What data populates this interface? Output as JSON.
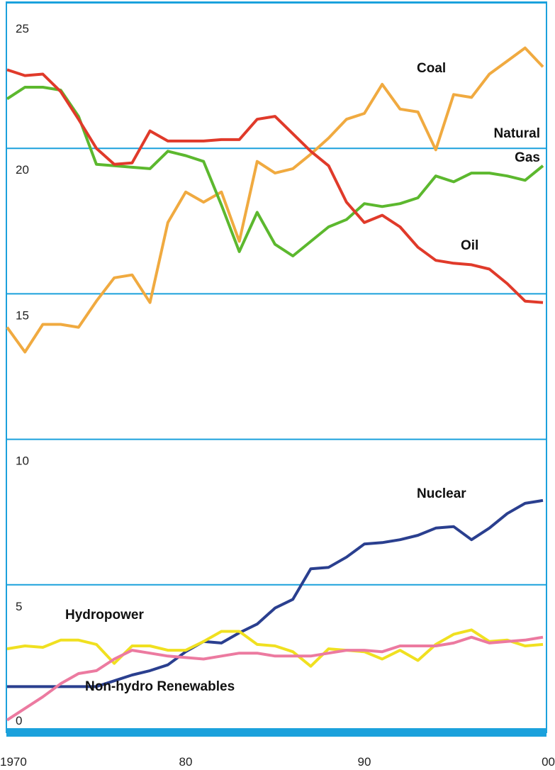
{
  "chart_data": {
    "type": "line",
    "x": [
      1970,
      1971,
      1972,
      1973,
      1974,
      1975,
      1976,
      1977,
      1978,
      1979,
      1980,
      1981,
      1982,
      1983,
      1984,
      1985,
      1986,
      1987,
      1988,
      1989,
      1990,
      1991,
      1992,
      1993,
      1994,
      1995,
      1996,
      1997,
      1998,
      1999,
      2000
    ],
    "xlim": [
      1970,
      2000
    ],
    "xticks": [
      1970,
      {
        "value": 1980,
        "label": "80"
      },
      {
        "value": 1990,
        "label": "90"
      },
      {
        "value": 2000,
        "label": "00"
      }
    ],
    "ylim": [
      0,
      25
    ],
    "yticks": [
      0,
      5,
      10,
      15,
      20,
      25
    ],
    "grid": true,
    "series": [
      {
        "name": "Coal",
        "color": "#f0aa40",
        "values": [
          13.85,
          13.0,
          13.95,
          13.95,
          13.85,
          14.75,
          15.55,
          15.65,
          14.7,
          17.45,
          18.5,
          18.15,
          18.5,
          16.8,
          19.55,
          19.15,
          19.3,
          19.8,
          20.35,
          21.0,
          21.2,
          22.2,
          21.35,
          21.25,
          19.95,
          21.85,
          21.75,
          22.55,
          23.0,
          23.45,
          22.8
        ]
      },
      {
        "name": "Natural Gas",
        "color": "#5cb82e",
        "values": [
          21.7,
          22.1,
          22.1,
          22.0,
          21.1,
          19.45,
          19.4,
          19.35,
          19.3,
          19.9,
          19.75,
          19.55,
          18.05,
          16.45,
          17.8,
          16.7,
          16.3,
          16.8,
          17.3,
          17.55,
          18.1,
          18.0,
          18.1,
          18.3,
          19.05,
          18.85,
          19.15,
          19.15,
          19.05,
          18.9,
          19.4
        ]
      },
      {
        "name": "Oil",
        "color": "#e03a2a",
        "values": [
          22.7,
          22.5,
          22.55,
          21.95,
          21.0,
          20.0,
          19.45,
          19.5,
          20.6,
          20.25,
          20.25,
          20.25,
          20.3,
          20.3,
          21.0,
          21.1,
          20.5,
          19.9,
          19.4,
          18.15,
          17.45,
          17.7,
          17.3,
          16.6,
          16.15,
          16.05,
          16.0,
          15.85,
          15.35,
          14.75,
          14.7
        ]
      },
      {
        "name": "Nuclear",
        "color": "#2a3f8f",
        "values": [
          1.5,
          1.5,
          1.5,
          1.5,
          1.5,
          1.5,
          1.7,
          1.9,
          2.05,
          2.25,
          2.7,
          3.05,
          3.0,
          3.35,
          3.65,
          4.2,
          4.5,
          5.55,
          5.6,
          5.95,
          6.4,
          6.45,
          6.55,
          6.7,
          6.95,
          7.0,
          6.55,
          6.95,
          7.45,
          7.8,
          7.9
        ]
      },
      {
        "name": "Hydropower",
        "color": "#f0e020",
        "values": [
          2.8,
          2.9,
          2.85,
          3.1,
          3.1,
          2.95,
          2.3,
          2.9,
          2.9,
          2.75,
          2.75,
          3.05,
          3.4,
          3.4,
          2.95,
          2.9,
          2.7,
          2.2,
          2.8,
          2.75,
          2.7,
          2.45,
          2.75,
          2.4,
          2.95,
          3.3,
          3.45,
          3.05,
          3.1,
          2.9,
          2.95
        ]
      },
      {
        "name": "Non-hydro Renewables",
        "color": "#ec7aa0",
        "values": [
          0.35,
          0.75,
          1.15,
          1.6,
          1.95,
          2.05,
          2.45,
          2.75,
          2.65,
          2.55,
          2.5,
          2.45,
          2.55,
          2.65,
          2.65,
          2.55,
          2.55,
          2.55,
          2.65,
          2.75,
          2.75,
          2.7,
          2.9,
          2.9,
          2.9,
          3.0,
          3.2,
          3.0,
          3.05,
          3.1,
          3.2
        ]
      }
    ]
  }
}
